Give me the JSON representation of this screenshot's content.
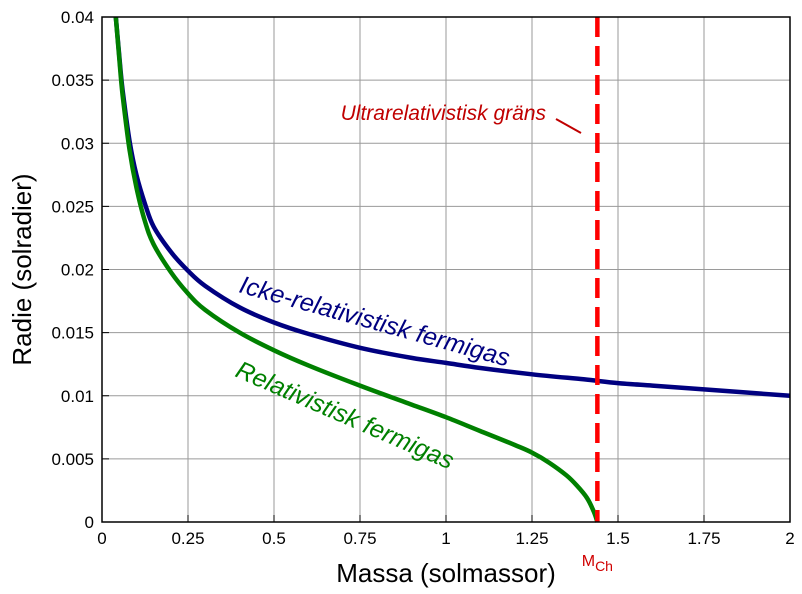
{
  "chart_data": {
    "type": "line",
    "title": "",
    "xlabel": "Massa (solmassor)",
    "ylabel": "Radie (solradier)",
    "xlim": [
      0,
      2
    ],
    "ylim": [
      0,
      0.04
    ],
    "grid": true,
    "x_ticks": [
      "0",
      "0.25",
      "0.5",
      "0.75",
      "1",
      "1.25",
      "1.5",
      "1.75",
      "2"
    ],
    "y_ticks": [
      "0",
      "0.005",
      "0.01",
      "0.015",
      "0.02",
      "0.025",
      "0.03",
      "0.035",
      "0.04"
    ],
    "series": [
      {
        "name": "Icke-relativistisk fermigas",
        "color": "#000080",
        "x": [
          0.04,
          0.05,
          0.06,
          0.08,
          0.1,
          0.125,
          0.15,
          0.2,
          0.25,
          0.3,
          0.4,
          0.5,
          0.6,
          0.75,
          0.9,
          1.0,
          1.1,
          1.25,
          1.4,
          1.5,
          1.6,
          1.75,
          2.0
        ],
        "y": [
          0.04,
          0.037,
          0.0342,
          0.0302,
          0.0275,
          0.0252,
          0.0234,
          0.0214,
          0.0199,
          0.0187,
          0.017,
          0.0158,
          0.0149,
          0.0138,
          0.013,
          0.0126,
          0.0122,
          0.0117,
          0.0113,
          0.011,
          0.0108,
          0.0105,
          0.01
        ]
      },
      {
        "name": "Relativistisk fermigas",
        "color": "#008000",
        "x": [
          0.04,
          0.05,
          0.06,
          0.08,
          0.1,
          0.125,
          0.15,
          0.2,
          0.25,
          0.3,
          0.4,
          0.5,
          0.6,
          0.75,
          0.9,
          1.0,
          1.1,
          1.2,
          1.25,
          1.3,
          1.35,
          1.38,
          1.41,
          1.43,
          1.44
        ],
        "y": [
          0.04,
          0.0368,
          0.0338,
          0.0295,
          0.0265,
          0.0238,
          0.022,
          0.0198,
          0.0181,
          0.0168,
          0.015,
          0.0136,
          0.0124,
          0.0108,
          0.0093,
          0.0083,
          0.0072,
          0.0061,
          0.0055,
          0.0047,
          0.0037,
          0.0029,
          0.0019,
          0.0008,
          0.0
        ]
      }
    ],
    "limit": {
      "label": "Ultrarelativistisk gräns",
      "x": 1.44,
      "color": "#ff0000",
      "mch": "M",
      "mch_sub": "Ch"
    }
  }
}
